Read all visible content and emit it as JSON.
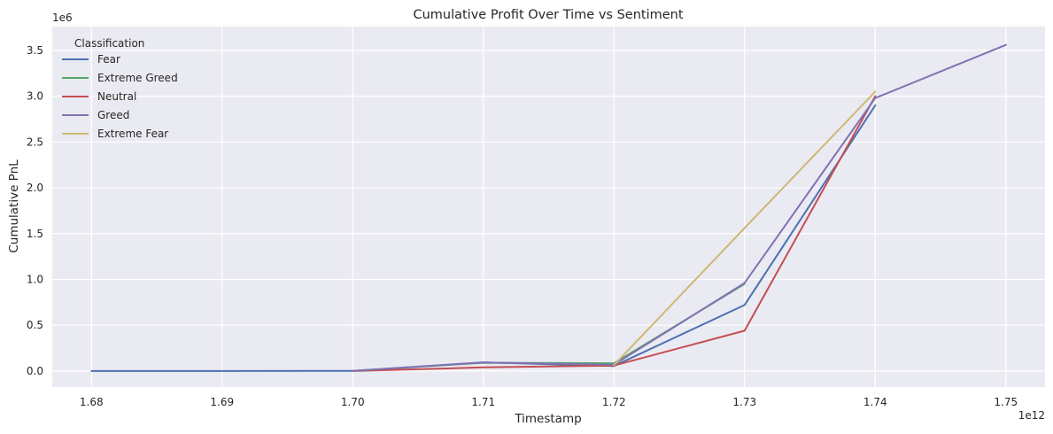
{
  "chart_data": {
    "type": "line",
    "title": "Cumulative Profit Over Time vs Sentiment",
    "xlabel": "Timestamp",
    "ylabel": "Cumulative PnL",
    "x_offset_label": "1e12",
    "y_offset_label": "1e6",
    "x_scale": 1000000000000,
    "y_scale": 1000000,
    "xlim": [
      1677000000000,
      1753000000000
    ],
    "ylim": [
      -175000,
      3760000
    ],
    "x_ticks": [
      1680000000000,
      1690000000000,
      1700000000000,
      1710000000000,
      1720000000000,
      1730000000000,
      1740000000000,
      1750000000000
    ],
    "x_tick_labels": [
      "1.68",
      "1.69",
      "1.70",
      "1.71",
      "1.72",
      "1.73",
      "1.74",
      "1.75"
    ],
    "y_ticks": [
      0,
      500000,
      1000000,
      1500000,
      2000000,
      2500000,
      3000000,
      3500000
    ],
    "y_tick_labels": [
      "0.0",
      "0.5",
      "1.0",
      "1.5",
      "2.0",
      "2.5",
      "3.0",
      "3.5"
    ],
    "grid": true,
    "background": "#eaeaf2",
    "legend": {
      "title": "Classification",
      "placement": "top-left"
    },
    "series": [
      {
        "name": "Fear",
        "color": "#4c72b0",
        "x": [
          1680000000000,
          1690000000000,
          1700000000000,
          1710000000000,
          1720000000000,
          1730000000000,
          1740000000000
        ],
        "y": [
          0,
          0,
          2000,
          95000,
          55000,
          720000,
          2900000
        ]
      },
      {
        "name": "Extreme Greed",
        "color": "#55a868",
        "x": [
          1700000000000,
          1710000000000,
          1720000000000,
          1730000000000
        ],
        "y": [
          2000,
          90000,
          85000,
          950000
        ]
      },
      {
        "name": "Neutral",
        "color": "#c44e52",
        "x": [
          1700000000000,
          1710000000000,
          1720000000000,
          1730000000000,
          1740000000000
        ],
        "y": [
          0,
          40000,
          60000,
          440000,
          3000000
        ]
      },
      {
        "name": "Greed",
        "color": "#8172b3",
        "x": [
          1700000000000,
          1710000000000,
          1720000000000,
          1730000000000,
          1740000000000,
          1750000000000
        ],
        "y": [
          2000,
          93000,
          70000,
          960000,
          2980000,
          3560000
        ]
      },
      {
        "name": "Extreme Fear",
        "color": "#ccb974",
        "x": [
          1720000000000,
          1730000000000,
          1740000000000
        ],
        "y": [
          65000,
          1560000,
          3050000
        ]
      }
    ]
  }
}
